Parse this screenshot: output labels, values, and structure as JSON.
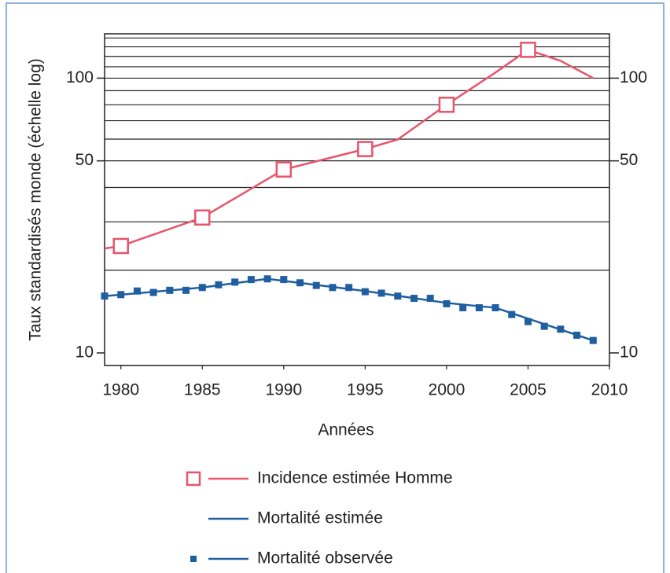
{
  "chart_data": {
    "type": "line",
    "x_label": "Années",
    "y_label": "Taux standardisés monde (échelle log)",
    "xlim": [
      1979,
      2010
    ],
    "xticks": [
      1980,
      1985,
      1990,
      1995,
      2000,
      2005,
      2010
    ],
    "ylim": [
      9,
      145
    ],
    "yticks": [
      10,
      50,
      100
    ],
    "y2lim": [
      9,
      145
    ],
    "y2ticks": [
      10,
      50,
      100
    ],
    "log_scale": true,
    "grid": true,
    "grid_values": [
      20,
      30,
      40,
      50,
      60,
      70,
      80,
      90,
      100,
      110,
      120,
      130,
      140
    ],
    "legend": "bottom",
    "series": [
      {
        "name": "Incidence estimée Homme",
        "color": "#e8546b",
        "marker": "open-square",
        "line": true,
        "x": [
          1979,
          1980,
          1985,
          1990,
          1995,
          1997,
          2000,
          2003,
          2005,
          2007,
          2009
        ],
        "values": [
          24,
          24.5,
          31.1,
          46.5,
          55.2,
          59.8,
          80,
          104.8,
          126.8,
          115.6,
          100
        ],
        "marker_x": [
          1980,
          1985,
          1990,
          1995,
          2000,
          2005
        ]
      },
      {
        "name": "Mortalité estimée",
        "color": "#1f5fa0",
        "line": true,
        "x": [
          1979,
          1985,
          1989,
          1995,
          2000,
          2003,
          2009
        ],
        "values": [
          16.1,
          17.3,
          18.6,
          16.8,
          15.2,
          14.6,
          11.1
        ]
      },
      {
        "name": "Mortalité observée",
        "color": "#1f5fa0",
        "marker": "filled-square",
        "line": false,
        "x": [
          1979,
          1980,
          1981,
          1982,
          1983,
          1984,
          1985,
          1986,
          1987,
          1988,
          1989,
          1990,
          1991,
          1992,
          1993,
          1994,
          1995,
          1996,
          1997,
          1998,
          1999,
          2000,
          2001,
          2002,
          2003,
          2004,
          2005,
          2006,
          2007,
          2008,
          2009
        ],
        "values": [
          16.1,
          16.3,
          16.8,
          16.6,
          16.9,
          16.9,
          17.3,
          17.7,
          18.1,
          18.5,
          18.6,
          18.5,
          18.0,
          17.6,
          17.3,
          17.3,
          16.7,
          16.5,
          16.1,
          15.8,
          15.8,
          15.1,
          14.6,
          14.6,
          14.6,
          13.8,
          13.0,
          12.5,
          12.2,
          11.6,
          11.1
        ]
      }
    ]
  }
}
